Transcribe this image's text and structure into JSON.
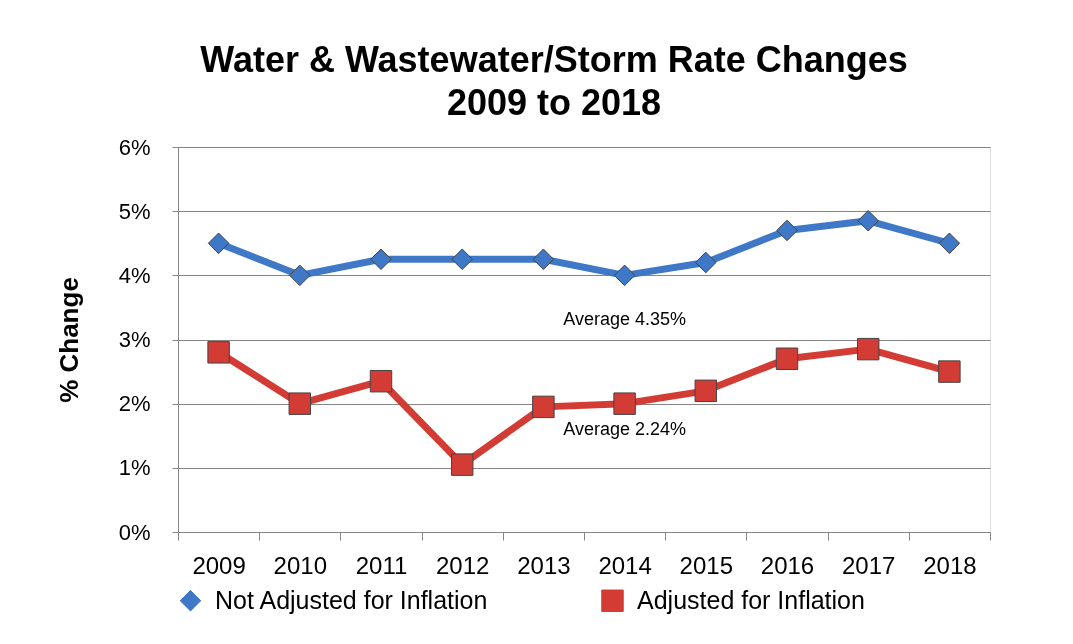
{
  "chart_data": {
    "type": "line",
    "title": "Water & Wastewater/Storm Rate Changes\n2009 to 2018",
    "ylabel": "% Change",
    "categories": [
      "2009",
      "2010",
      "2011",
      "2012",
      "2013",
      "2014",
      "2015",
      "2016",
      "2017",
      "2018"
    ],
    "series": [
      {
        "name": "Not Adjusted for Inflation",
        "color": "#3f78c6",
        "marker": "diamond",
        "values": [
          4.5,
          4.0,
          4.25,
          4.25,
          4.25,
          4.0,
          4.2,
          4.7,
          4.85,
          4.5
        ]
      },
      {
        "name": "Adjusted for Inflation",
        "color": "#d23c34",
        "marker": "square",
        "values": [
          2.8,
          2.0,
          2.35,
          1.05,
          1.95,
          2.0,
          2.2,
          2.7,
          2.85,
          2.5
        ]
      }
    ],
    "ylim": [
      0,
      6
    ],
    "yticks": [
      {
        "value": 0,
        "label": "0%"
      },
      {
        "value": 1,
        "label": "1%"
      },
      {
        "value": 2,
        "label": "2%"
      },
      {
        "value": 3,
        "label": "3%"
      },
      {
        "value": 4,
        "label": "4%"
      },
      {
        "value": 5,
        "label": "5%"
      },
      {
        "value": 6,
        "label": "6%"
      }
    ],
    "grid": "y",
    "legend": "bottom",
    "annotations": [
      "Average 4.35%",
      "Average 2.24%"
    ]
  }
}
